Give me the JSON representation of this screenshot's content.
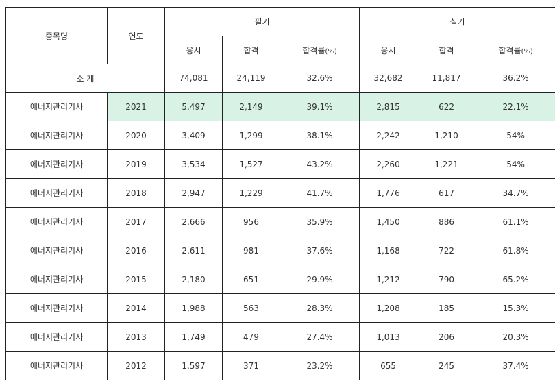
{
  "header": {
    "item": "종목명",
    "year": "연도",
    "written": "필기",
    "practical": "실기",
    "applicants": "응시",
    "passed": "합격",
    "rate_main": "합격률",
    "rate_unit": "(%)"
  },
  "subtotal": {
    "label": "소 계",
    "w_app": "74,081",
    "w_pass": "24,119",
    "w_rate": "32.6%",
    "p_app": "32,682",
    "p_pass": "11,817",
    "p_rate": "36.2%"
  },
  "rows": [
    {
      "name": "에너지관리기사",
      "year": "2021",
      "w_app": "5,497",
      "w_pass": "2,149",
      "w_rate": "39.1%",
      "p_app": "2,815",
      "p_pass": "622",
      "p_rate": "22.1%"
    },
    {
      "name": "에너지관리기사",
      "year": "2020",
      "w_app": "3,409",
      "w_pass": "1,299",
      "w_rate": "38.1%",
      "p_app": "2,242",
      "p_pass": "1,210",
      "p_rate": "54%"
    },
    {
      "name": "에너지관리기사",
      "year": "2019",
      "w_app": "3,534",
      "w_pass": "1,527",
      "w_rate": "43.2%",
      "p_app": "2,260",
      "p_pass": "1,221",
      "p_rate": "54%"
    },
    {
      "name": "에너지관리기사",
      "year": "2018",
      "w_app": "2,947",
      "w_pass": "1,229",
      "w_rate": "41.7%",
      "p_app": "1,776",
      "p_pass": "617",
      "p_rate": "34.7%"
    },
    {
      "name": "에너지관리기사",
      "year": "2017",
      "w_app": "2,666",
      "w_pass": "956",
      "w_rate": "35.9%",
      "p_app": "1,450",
      "p_pass": "886",
      "p_rate": "61.1%"
    },
    {
      "name": "에너지관리기사",
      "year": "2016",
      "w_app": "2,611",
      "w_pass": "981",
      "w_rate": "37.6%",
      "p_app": "1,168",
      "p_pass": "722",
      "p_rate": "61.8%"
    },
    {
      "name": "에너지관리기사",
      "year": "2015",
      "w_app": "2,180",
      "w_pass": "651",
      "w_rate": "29.9%",
      "p_app": "1,212",
      "p_pass": "790",
      "p_rate": "65.2%"
    },
    {
      "name": "에너지관리기사",
      "year": "2014",
      "w_app": "1,988",
      "w_pass": "563",
      "w_rate": "28.3%",
      "p_app": "1,208",
      "p_pass": "185",
      "p_rate": "15.3%"
    },
    {
      "name": "에너지관리기사",
      "year": "2013",
      "w_app": "1,749",
      "w_pass": "479",
      "w_rate": "27.4%",
      "p_app": "1,013",
      "p_pass": "206",
      "p_rate": "20.3%"
    },
    {
      "name": "에너지관리기사",
      "year": "2012",
      "w_app": "1,597",
      "w_pass": "371",
      "w_rate": "23.2%",
      "p_app": "655",
      "p_pass": "245",
      "p_rate": "37.4%"
    }
  ],
  "colors": {
    "highlight": "#d8f2e6",
    "border": "#222222"
  }
}
